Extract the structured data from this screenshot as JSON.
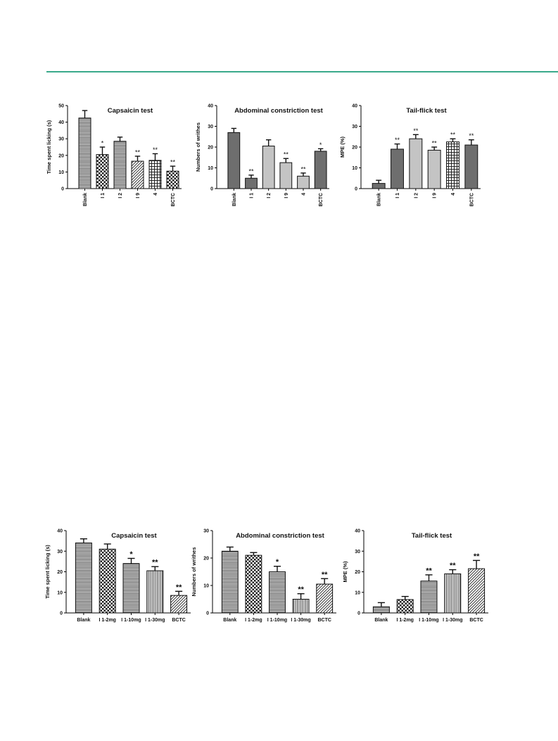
{
  "page": {
    "accent_rule_color": "#3aa98b"
  },
  "chart_data": [
    {
      "type": "bar",
      "title": "Capsaicin test",
      "ylabel": "Time spent licking (s)",
      "xlabel": "",
      "categories": [
        "Blank",
        "I 1",
        "I 2",
        "I 9",
        "4",
        "BCTC"
      ],
      "values": [
        42.5,
        20.5,
        28.5,
        16.5,
        17,
        10.5
      ],
      "errors": [
        4.5,
        4.5,
        2.5,
        3,
        4,
        3
      ],
      "significance": [
        "",
        "*",
        "",
        "**",
        "**",
        "**"
      ],
      "fills": [
        "hlines",
        "check",
        "hlines",
        "diag",
        "grid",
        "check"
      ],
      "ylim": [
        0,
        50
      ],
      "yticks": [
        "0",
        "10",
        "20",
        "30",
        "40",
        "50"
      ],
      "rotate_x_labels": true,
      "grid": false
    },
    {
      "type": "bar",
      "title": "Abdominal constriction test",
      "ylabel": "Numbers of writhes",
      "xlabel": "",
      "categories": [
        "Blank",
        "I 1",
        "I 2",
        "I 9",
        "4",
        "BCTC"
      ],
      "values": [
        27,
        5,
        20.5,
        12.5,
        6,
        18
      ],
      "errors": [
        2,
        1.5,
        3,
        2,
        1.5,
        1.2
      ],
      "significance": [
        "",
        "**",
        "",
        "**",
        "**",
        "*"
      ],
      "fills": [
        "dark",
        "dark",
        "light",
        "light",
        "light",
        "dark"
      ],
      "ylim": [
        0,
        40
      ],
      "yticks": [
        "0",
        "10",
        "20",
        "30",
        "40"
      ],
      "rotate_x_labels": true,
      "grid": false
    },
    {
      "type": "bar",
      "title": "Tail-flick test",
      "ylabel": "MPE (%)",
      "xlabel": "",
      "categories": [
        "Blank",
        "I 1",
        "I 2",
        "I 9",
        "4",
        "BCTC"
      ],
      "values": [
        2.5,
        19,
        24,
        18.5,
        22.5,
        21
      ],
      "errors": [
        1.5,
        2.5,
        2,
        1.5,
        1.5,
        2.5
      ],
      "significance": [
        "",
        "**",
        "**",
        "**",
        "**",
        "**"
      ],
      "fills": [
        "dark",
        "dark",
        "light",
        "light",
        "grid",
        "dark"
      ],
      "ylim": [
        0,
        40
      ],
      "yticks": [
        "0",
        "10",
        "20",
        "30",
        "40"
      ],
      "rotate_x_labels": true,
      "grid": false
    },
    {
      "type": "bar",
      "title": "Capsaicin test",
      "ylabel": "Time spent licking (s)",
      "xlabel": "",
      "categories": [
        "Blank",
        "I 1-2mg",
        "I 1-10mg",
        "I 1-30mg",
        "BCTC"
      ],
      "values": [
        34,
        31,
        24,
        20.5,
        8.5
      ],
      "errors": [
        2,
        2.5,
        2.5,
        2,
        2
      ],
      "significance": [
        "",
        "",
        "*",
        "**",
        "**"
      ],
      "fills": [
        "hlines",
        "check",
        "hlines",
        "vlines",
        "diag"
      ],
      "ylim": [
        0,
        40
      ],
      "yticks": [
        "0",
        "10",
        "20",
        "30",
        "40"
      ],
      "rotate_x_labels": false,
      "grid": false
    },
    {
      "type": "bar",
      "title": "Abdominal constriction test",
      "ylabel": "Numbers of writhes",
      "xlabel": "",
      "categories": [
        "Blank",
        "I 1-2mg",
        "I 1-10mg",
        "I 1-30mg",
        "BCTC"
      ],
      "values": [
        22.5,
        21,
        15,
        5,
        10.5
      ],
      "errors": [
        1.5,
        1,
        2,
        2,
        2
      ],
      "significance": [
        "",
        "",
        "*",
        "**",
        "**"
      ],
      "fills": [
        "hlines",
        "check",
        "hlines",
        "vlines",
        "diag"
      ],
      "ylim": [
        0,
        30
      ],
      "yticks": [
        "0",
        "10",
        "20",
        "30"
      ],
      "rotate_x_labels": false,
      "grid": false
    },
    {
      "type": "bar",
      "title": "Tail-flick test",
      "ylabel": "MPE (%)",
      "xlabel": "",
      "categories": [
        "Blank",
        "I 1-2mg",
        "I 1-10mg",
        "I 1-30mg",
        "BCTC"
      ],
      "values": [
        3,
        6.5,
        15.5,
        19,
        21.5
      ],
      "errors": [
        2,
        1.5,
        3,
        2,
        4
      ],
      "significance": [
        "",
        "",
        "**",
        "**",
        "**"
      ],
      "fills": [
        "hlines",
        "check",
        "hlines",
        "vlines",
        "diag"
      ],
      "ylim": [
        0,
        40
      ],
      "yticks": [
        "0",
        "10",
        "20",
        "30",
        "40"
      ],
      "rotate_x_labels": false,
      "grid": false
    }
  ]
}
